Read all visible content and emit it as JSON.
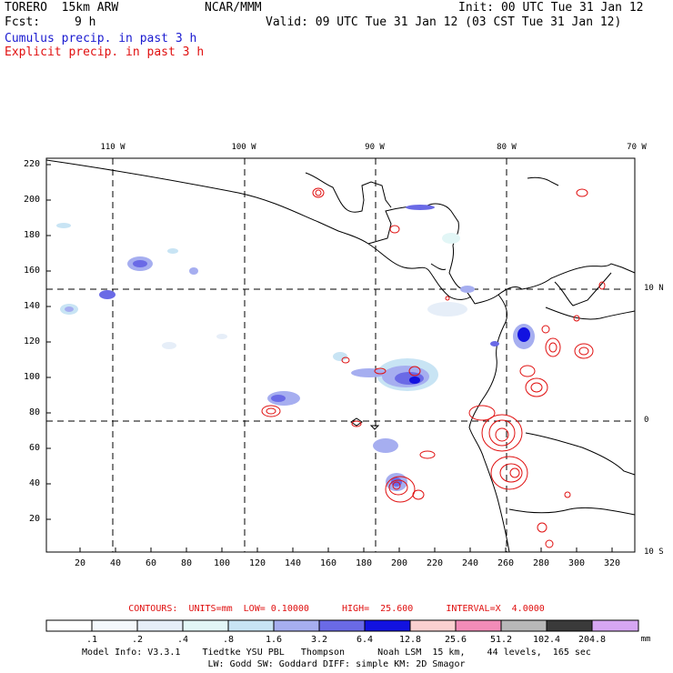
{
  "header": {
    "model": "TORERO  15km ARW",
    "org": "NCAR/MMM",
    "init": "Init: 00 UTC Tue 31 Jan 12",
    "fcst_label": "Fcst:",
    "fcst_value": "9 h",
    "valid": "Valid: 09 UTC Tue 31 Jan 12 (03 CST Tue 31 Jan 12)",
    "line1": "Cumulus precip. in past 3 h",
    "line2": "Explicit precip. in past 3 h"
  },
  "colors": {
    "cumulus": "#1a1ad0",
    "explicit": "#e01010"
  },
  "map": {
    "top_lon_labels": [
      "110 W",
      "100 W",
      "90 W",
      "80 W",
      "70 W"
    ],
    "right_lat_labels": [
      "10 N",
      "0",
      "10 S"
    ],
    "y_ticks": [
      "220",
      "200",
      "180",
      "160",
      "140",
      "120",
      "100",
      "80",
      "60",
      "40",
      "20"
    ],
    "x_ticks": [
      "20",
      "40",
      "60",
      "80",
      "100",
      "120",
      "140",
      "160",
      "180",
      "200",
      "220",
      "240",
      "260",
      "280",
      "300",
      "320"
    ]
  },
  "contours": {
    "text": "CONTOURS:  UNITS=mm  LOW= 0.10000      HIGH=  25.600      INTERVAL=X  4.0000"
  },
  "scale": {
    "labels": [
      ".1",
      ".2",
      ".4",
      ".8",
      "1.6",
      "3.2",
      "6.4",
      "12.8",
      "25.6",
      "51.2",
      "102.4",
      "204.8"
    ],
    "unit": "mm",
    "colors": [
      "#ffffff",
      "#f4f8fc",
      "#e6eef8",
      "#e2f6f6",
      "#c8e4f4",
      "#a6aef0",
      "#6a6ae6",
      "#1212e0",
      "#fad0d0",
      "#f28cb8",
      "#b8b8b8",
      "#3a3a3a",
      "#d6a6f2"
    ]
  },
  "footer": {
    "line1": "Model Info: V3.3.1    Tiedtke YSU PBL   Thompson      Noah LSM  15 km,    44 levels,  165 sec",
    "line2": "LW: Godd SW: Goddard DIFF: simple KM: 2D Smagor"
  }
}
